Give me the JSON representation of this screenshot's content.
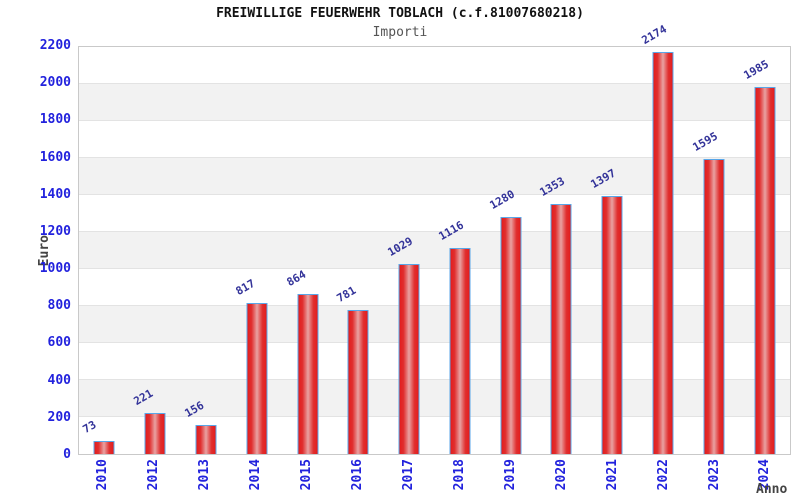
{
  "chart_data": {
    "type": "bar",
    "title": "FREIWILLIGE FEUERWEHR TOBLACH (c.f.81007680218)",
    "subtitle": "Importi",
    "xlabel": "Anno",
    "ylabel": "Euro",
    "categories": [
      "2010",
      "2012",
      "2013",
      "2014",
      "2015",
      "2016",
      "2017",
      "2018",
      "2019",
      "2020",
      "2021",
      "2022",
      "2023",
      "2024"
    ],
    "values": [
      73,
      221,
      156,
      817,
      864,
      781,
      1029,
      1116,
      1280,
      1353,
      1397,
      2174,
      1595,
      1985
    ],
    "ylim": [
      0,
      2200
    ],
    "ytick_step": 200,
    "grid": true,
    "legend_position": "none",
    "colors": {
      "bar_fill": "#e41c1c",
      "bar_fill_center": "#e9a2a2",
      "bar_border": "#58a6e8",
      "axis_tick_label": "#2222dd",
      "value_label": "#333399",
      "axis_title": "#444444",
      "subtitle_text": "#555555",
      "band_stripe": "#f2f2f2",
      "gridline": "#e3e3e3",
      "plot_border": "#c9c9c9"
    }
  }
}
